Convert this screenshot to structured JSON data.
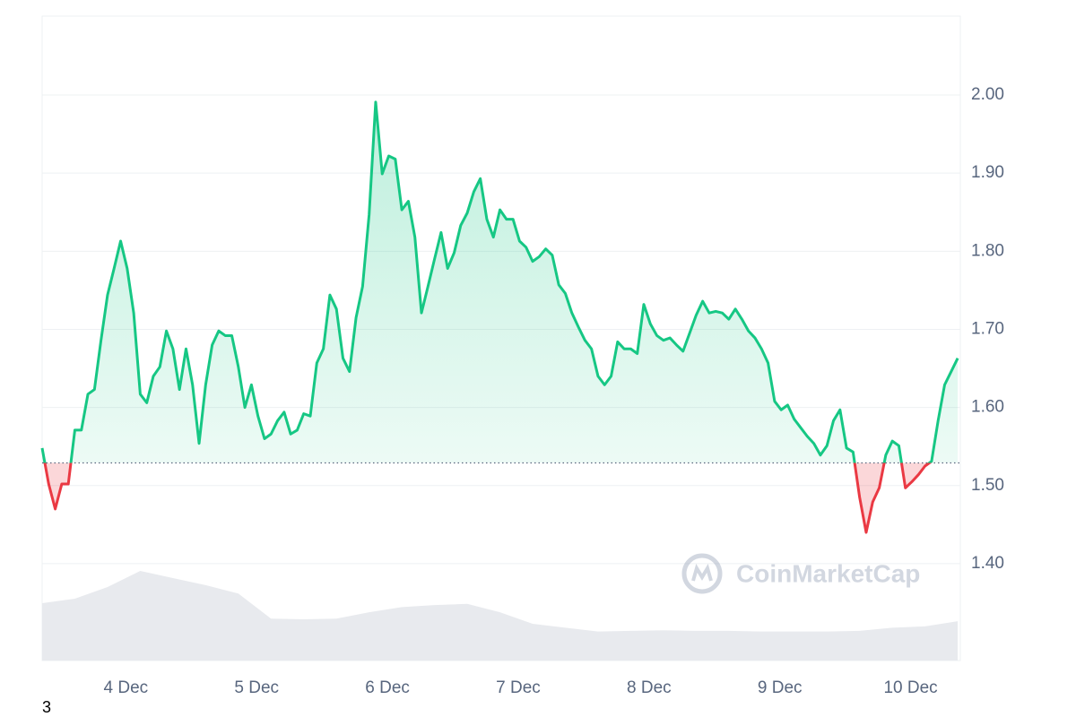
{
  "chart_data": {
    "type": "line",
    "x": [
      3.36,
      3.41,
      3.46,
      3.51,
      3.56,
      3.61,
      3.66,
      3.71,
      3.76,
      3.81,
      3.86,
      3.91,
      3.96,
      4.01,
      4.06,
      4.11,
      4.16,
      4.21,
      4.26,
      4.31,
      4.36,
      4.41,
      4.46,
      4.51,
      4.56,
      4.61,
      4.66,
      4.71,
      4.76,
      4.81,
      4.86,
      4.91,
      4.96,
      5.01,
      5.06,
      5.11,
      5.16,
      5.21,
      5.26,
      5.31,
      5.36,
      5.41,
      5.46,
      5.51,
      5.56,
      5.61,
      5.66,
      5.71,
      5.76,
      5.81,
      5.86,
      5.91,
      5.96,
      6.01,
      6.06,
      6.11,
      6.16,
      6.21,
      6.26,
      6.31,
      6.36,
      6.41,
      6.46,
      6.51,
      6.56,
      6.61,
      6.66,
      6.71,
      6.76,
      6.81,
      6.86,
      6.91,
      6.96,
      7.01,
      7.06,
      7.11,
      7.16,
      7.21,
      7.26,
      7.31,
      7.36,
      7.41,
      7.46,
      7.51,
      7.56,
      7.61,
      7.66,
      7.71,
      7.76,
      7.81,
      7.86,
      7.91,
      7.96,
      8.01,
      8.06,
      8.11,
      8.16,
      8.21,
      8.26,
      8.31,
      8.36,
      8.41,
      8.46,
      8.51,
      8.56,
      8.61,
      8.66,
      8.71,
      8.76,
      8.81,
      8.86,
      8.91,
      8.96,
      9.01,
      9.06,
      9.11,
      9.16,
      9.21,
      9.26,
      9.31,
      9.36,
      9.41,
      9.46,
      9.51,
      9.56,
      9.61,
      9.66,
      9.71,
      9.76,
      9.81,
      9.86,
      9.91,
      9.96,
      10.01,
      10.06,
      10.11,
      10.16,
      10.21,
      10.26,
      10.31,
      10.36
    ],
    "values": [
      1.548,
      1.502,
      1.47,
      1.502,
      1.502,
      1.571,
      1.571,
      1.617,
      1.623,
      1.686,
      1.744,
      1.778,
      1.813,
      1.778,
      1.721,
      1.617,
      1.606,
      1.64,
      1.652,
      1.698,
      1.675,
      1.623,
      1.675,
      1.629,
      1.554,
      1.629,
      1.68,
      1.698,
      1.692,
      1.692,
      1.652,
      1.6,
      1.629,
      1.589,
      1.56,
      1.566,
      1.583,
      1.594,
      1.566,
      1.571,
      1.592,
      1.589,
      1.657,
      1.675,
      1.744,
      1.726,
      1.663,
      1.646,
      1.715,
      1.755,
      1.847,
      1.991,
      1.899,
      1.922,
      1.918,
      1.853,
      1.864,
      1.818,
      1.721,
      1.755,
      1.79,
      1.824,
      1.778,
      1.798,
      1.833,
      1.849,
      1.876,
      1.893,
      1.841,
      1.818,
      1.853,
      1.841,
      1.841,
      1.813,
      1.805,
      1.787,
      1.793,
      1.803,
      1.795,
      1.757,
      1.746,
      1.721,
      1.703,
      1.686,
      1.675,
      1.64,
      1.629,
      1.64,
      1.684,
      1.675,
      1.675,
      1.669,
      1.732,
      1.707,
      1.692,
      1.686,
      1.689,
      1.68,
      1.672,
      1.695,
      1.718,
      1.736,
      1.721,
      1.723,
      1.721,
      1.713,
      1.726,
      1.713,
      1.698,
      1.689,
      1.675,
      1.657,
      1.608,
      1.597,
      1.603,
      1.585,
      1.574,
      1.563,
      1.554,
      1.539,
      1.551,
      1.583,
      1.597,
      1.548,
      1.543,
      1.485,
      1.44,
      1.479,
      1.497,
      1.539,
      1.557,
      1.551,
      1.497,
      1.505,
      1.514,
      1.525,
      1.531,
      1.583,
      1.629,
      1.646,
      1.663
    ],
    "baseline": 1.529,
    "up_color": "#16c784",
    "down_color": "#ea3943",
    "xlim": [
      3.36,
      10.38
    ],
    "xticks": [
      {
        "value": 4,
        "label": "4 Dec"
      },
      {
        "value": 5,
        "label": "5 Dec"
      },
      {
        "value": 6,
        "label": "6 Dec"
      },
      {
        "value": 7,
        "label": "7 Dec"
      },
      {
        "value": 8,
        "label": "8 Dec"
      },
      {
        "value": 9,
        "label": "9 Dec"
      },
      {
        "value": 10,
        "label": "10 Dec"
      }
    ],
    "ylim": [
      1.276,
      2.101
    ],
    "yticks": [
      {
        "value": 1.4,
        "label": "1.40"
      },
      {
        "value": 1.5,
        "label": "1.50"
      },
      {
        "value": 1.6,
        "label": "1.60"
      },
      {
        "value": 1.7,
        "label": "1.70"
      },
      {
        "value": 1.8,
        "label": "1.80"
      },
      {
        "value": 1.9,
        "label": "1.90"
      },
      {
        "value": 2.0,
        "label": "2.00"
      }
    ],
    "grid": true,
    "y2lim": [
      0,
      100
    ],
    "volume": {
      "x": [
        3.36,
        3.61,
        3.86,
        4.11,
        4.36,
        4.61,
        4.86,
        5.11,
        5.36,
        5.61,
        5.86,
        6.11,
        6.36,
        6.61,
        6.86,
        7.11,
        7.36,
        7.61,
        7.86,
        8.11,
        8.36,
        8.61,
        8.86,
        9.11,
        9.36,
        9.61,
        9.86,
        10.11,
        10.36
      ],
      "values": [
        8.9,
        9.6,
        11.4,
        13.9,
        12.8,
        11.7,
        10.4,
        6.5,
        6.4,
        6.5,
        7.5,
        8.3,
        8.6,
        8.8,
        7.5,
        5.7,
        5.1,
        4.5,
        4.6,
        4.7,
        4.6,
        4.6,
        4.5,
        4.5,
        4.5,
        4.6,
        5.1,
        5.3,
        6.1
      ],
      "color": "#e8eaee"
    },
    "watermark": "CoinMarketCap",
    "footnote": "3"
  }
}
